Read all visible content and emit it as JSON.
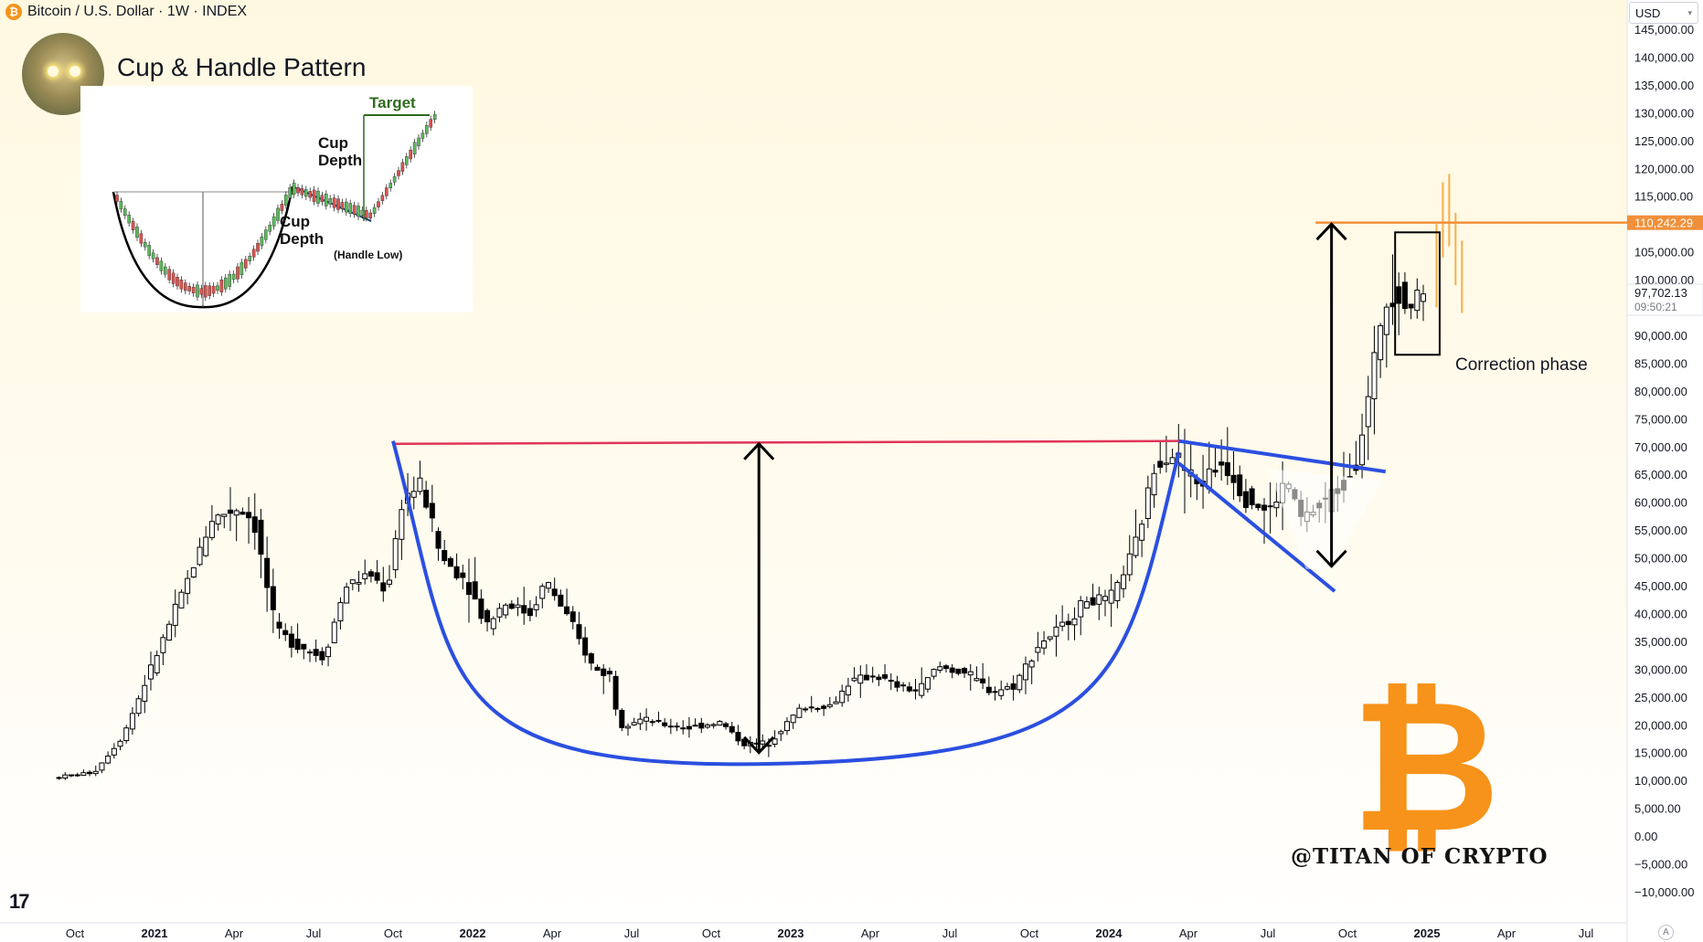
{
  "header": {
    "symbol_title": "Bitcoin / U.S. Dollar · 1W · INDEX",
    "symbol_icon": "bitcoin-coin-icon",
    "currency": "USD"
  },
  "overlay": {
    "pattern_title": "Cup & Handle Pattern",
    "annotation": "Correction phase",
    "watermark": "@TITAN OF CRYPTO",
    "btc_logo_char": "₿",
    "tv_logo": "17",
    "scale_mode": "A"
  },
  "inset": {
    "target_label": "Target",
    "cup_depth_label_1": "Cup Depth",
    "cup_depth_label_2": "Cup Depth",
    "handle_low_label": "(Handle Low)"
  },
  "colors": {
    "up_candle": "#ffffff",
    "down_candle": "#000000",
    "projection": "#f7a63a",
    "price_line": "#f0903a",
    "rim_line": "#e0345a",
    "cup_curve": "#2b4fe0",
    "bitcoin_orange": "#f7931a"
  },
  "chart_data": {
    "type": "candlestick",
    "title": "Bitcoin / U.S. Dollar · 1W · INDEX",
    "ylim": [
      -10000,
      145000
    ],
    "y_ticks": [
      "145,000.00",
      "140,000.00",
      "135,000.00",
      "130,000.00",
      "125,000.00",
      "120,000.00",
      "115,000.00",
      "105,000.00",
      "100,000.00",
      "90,000.00",
      "85,000.00",
      "80,000.00",
      "75,000.00",
      "70,000.00",
      "65,000.00",
      "60,000.00",
      "55,000.00",
      "50,000.00",
      "45,000.00",
      "40,000.00",
      "35,000.00",
      "30,000.00",
      "25,000.00",
      "20,000.00",
      "15,000.00",
      "10,000.00",
      "5,000.00",
      "0.00",
      "−5,000.00",
      "−10,000.00"
    ],
    "x_ticks": [
      {
        "label": "Oct",
        "t": 2020.75,
        "bold": false
      },
      {
        "label": "2021",
        "t": 2021.0,
        "bold": true
      },
      {
        "label": "Apr",
        "t": 2021.25,
        "bold": false
      },
      {
        "label": "Jul",
        "t": 2021.5,
        "bold": false
      },
      {
        "label": "Oct",
        "t": 2021.75,
        "bold": false
      },
      {
        "label": "2022",
        "t": 2022.0,
        "bold": true
      },
      {
        "label": "Apr",
        "t": 2022.25,
        "bold": false
      },
      {
        "label": "Jul",
        "t": 2022.5,
        "bold": false
      },
      {
        "label": "Oct",
        "t": 2022.75,
        "bold": false
      },
      {
        "label": "2023",
        "t": 2023.0,
        "bold": true
      },
      {
        "label": "Apr",
        "t": 2023.25,
        "bold": false
      },
      {
        "label": "Jul",
        "t": 2023.5,
        "bold": false
      },
      {
        "label": "Oct",
        "t": 2023.75,
        "bold": false
      },
      {
        "label": "2024",
        "t": 2024.0,
        "bold": true
      },
      {
        "label": "Apr",
        "t": 2024.25,
        "bold": false
      },
      {
        "label": "Jul",
        "t": 2024.5,
        "bold": false
      },
      {
        "label": "Oct",
        "t": 2024.75,
        "bold": false
      },
      {
        "label": "2025",
        "t": 2025.0,
        "bold": true
      },
      {
        "label": "Apr",
        "t": 2025.25,
        "bold": false
      },
      {
        "label": "Jul",
        "t": 2025.5,
        "bold": false
      }
    ],
    "price_anchors": [
      {
        "t": 2020.7,
        "p": 10500
      },
      {
        "t": 2020.83,
        "p": 11500
      },
      {
        "t": 2020.92,
        "p": 18000
      },
      {
        "t": 2021.0,
        "p": 29000
      },
      {
        "t": 2021.08,
        "p": 40000
      },
      {
        "t": 2021.13,
        "p": 47000
      },
      {
        "t": 2021.2,
        "p": 57000
      },
      {
        "t": 2021.28,
        "p": 59000
      },
      {
        "t": 2021.33,
        "p": 57000
      },
      {
        "t": 2021.4,
        "p": 37000
      },
      {
        "t": 2021.45,
        "p": 35000
      },
      {
        "t": 2021.55,
        "p": 32000
      },
      {
        "t": 2021.62,
        "p": 45000
      },
      {
        "t": 2021.7,
        "p": 47000
      },
      {
        "t": 2021.75,
        "p": 44000
      },
      {
        "t": 2021.8,
        "p": 61000
      },
      {
        "t": 2021.86,
        "p": 63000
      },
      {
        "t": 2021.92,
        "p": 50000
      },
      {
        "t": 2022.0,
        "p": 46000
      },
      {
        "t": 2022.06,
        "p": 38000
      },
      {
        "t": 2022.12,
        "p": 42000
      },
      {
        "t": 2022.2,
        "p": 40000
      },
      {
        "t": 2022.25,
        "p": 46000
      },
      {
        "t": 2022.32,
        "p": 39000
      },
      {
        "t": 2022.4,
        "p": 30000
      },
      {
        "t": 2022.45,
        "p": 29000
      },
      {
        "t": 2022.48,
        "p": 20000
      },
      {
        "t": 2022.55,
        "p": 21000
      },
      {
        "t": 2022.62,
        "p": 20000
      },
      {
        "t": 2022.7,
        "p": 19500
      },
      {
        "t": 2022.8,
        "p": 20500
      },
      {
        "t": 2022.87,
        "p": 16500
      },
      {
        "t": 2022.95,
        "p": 16800
      },
      {
        "t": 2023.05,
        "p": 23000
      },
      {
        "t": 2023.15,
        "p": 23500
      },
      {
        "t": 2023.2,
        "p": 27500
      },
      {
        "t": 2023.28,
        "p": 29000
      },
      {
        "t": 2023.35,
        "p": 27000
      },
      {
        "t": 2023.42,
        "p": 26000
      },
      {
        "t": 2023.48,
        "p": 30500
      },
      {
        "t": 2023.57,
        "p": 29300
      },
      {
        "t": 2023.65,
        "p": 26000
      },
      {
        "t": 2023.72,
        "p": 27000
      },
      {
        "t": 2023.8,
        "p": 34500
      },
      {
        "t": 2023.87,
        "p": 37500
      },
      {
        "t": 2023.95,
        "p": 42500
      },
      {
        "t": 2024.02,
        "p": 42000
      },
      {
        "t": 2024.1,
        "p": 51500
      },
      {
        "t": 2024.17,
        "p": 68000
      },
      {
        "t": 2024.22,
        "p": 69000
      },
      {
        "t": 2024.3,
        "p": 63000
      },
      {
        "t": 2024.38,
        "p": 67500
      },
      {
        "t": 2024.45,
        "p": 61000
      },
      {
        "t": 2024.52,
        "p": 58000
      },
      {
        "t": 2024.58,
        "p": 64000
      },
      {
        "t": 2024.62,
        "p": 57000
      },
      {
        "t": 2024.68,
        "p": 59000
      },
      {
        "t": 2024.75,
        "p": 63000
      },
      {
        "t": 2024.8,
        "p": 68000
      },
      {
        "t": 2024.84,
        "p": 80000
      },
      {
        "t": 2024.88,
        "p": 95000
      },
      {
        "t": 2024.92,
        "p": 99000
      },
      {
        "t": 2024.96,
        "p": 95000
      },
      {
        "t": 2025.0,
        "p": 97700
      }
    ],
    "projection_bars": [
      {
        "t": 2025.03,
        "o": 96000,
        "h": 110000,
        "l": 95000,
        "c": 108000
      },
      {
        "t": 2025.05,
        "o": 108000,
        "h": 117500,
        "l": 104000,
        "c": 115000
      },
      {
        "t": 2025.07,
        "o": 115000,
        "h": 119000,
        "l": 106000,
        "c": 109000
      },
      {
        "t": 2025.09,
        "o": 109000,
        "h": 112000,
        "l": 99000,
        "c": 102000
      },
      {
        "t": 2025.11,
        "o": 102000,
        "h": 107000,
        "l": 94000,
        "c": 97000
      }
    ],
    "current_price": "97,702.13",
    "countdown": "09:50:21",
    "target_price": 110242.29,
    "target_label": "110,242.29",
    "rim_line": {
      "t1": 2021.75,
      "p1": 70500,
      "t2": 2024.22,
      "p2": 71000
    },
    "cup_curve": {
      "t_start": 2021.75,
      "p_start": 71000,
      "t_bottom": 2022.95,
      "p_bottom": 13000,
      "t_end": 2024.22,
      "p_end": 69000
    },
    "cup_depth_arrow": {
      "t": 2022.9,
      "p_top": 70500,
      "p_bottom": 15000
    },
    "handle_upper": {
      "t1": 2024.22,
      "p1": 71000,
      "t2": 2024.87,
      "p2": 65500
    },
    "handle_lower": {
      "t1": 2024.22,
      "p1": 67000,
      "t2": 2024.71,
      "p2": 44000
    },
    "handle_depth_arrow": {
      "t": 2024.7,
      "p_top": 110000,
      "p_bottom": 48500
    },
    "correction_box": {
      "t1": 2024.9,
      "p1": 108500,
      "t2": 2025.04,
      "p2": 86500
    }
  }
}
